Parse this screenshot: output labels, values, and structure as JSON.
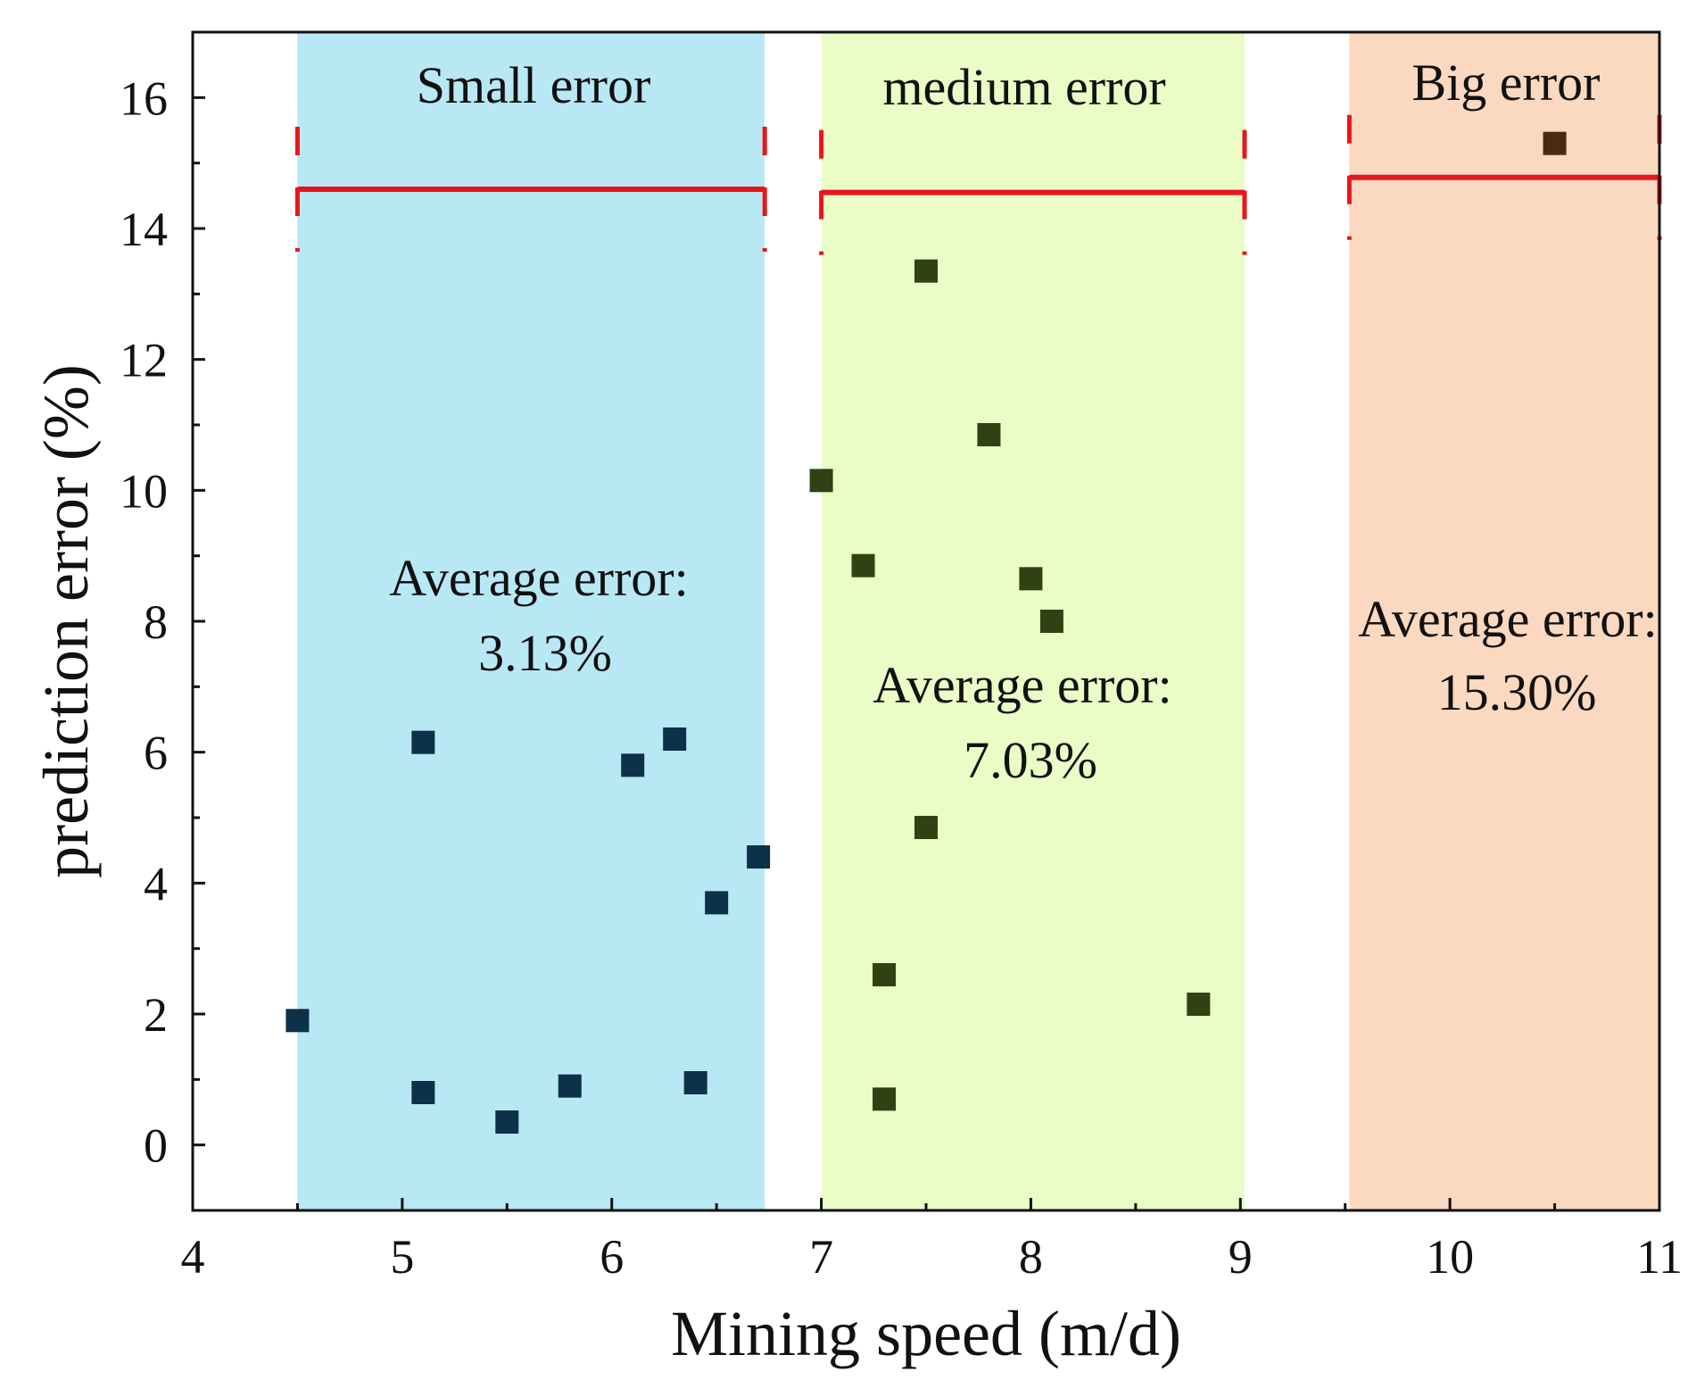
{
  "chart_data": {
    "type": "scatter",
    "title": "",
    "xlabel": "Mining speed (m/d)",
    "ylabel": "prediction error (%)",
    "xlim": [
      4,
      11
    ],
    "ylim": [
      -1,
      17
    ],
    "xticks": [
      4,
      5,
      6,
      7,
      8,
      9,
      10,
      11
    ],
    "yticks": [
      0,
      2,
      4,
      6,
      8,
      10,
      12,
      14,
      16
    ],
    "xtick_labels": [
      "4",
      "5",
      "6",
      "7",
      "8",
      "9",
      "10",
      "11"
    ],
    "ytick_labels": [
      "0",
      "2",
      "4",
      "6",
      "8",
      "10",
      "12",
      "14",
      "16"
    ],
    "grid": false,
    "regions": [
      {
        "name": "small",
        "label": "Small error",
        "x_range": [
          4.5,
          6.73
        ],
        "color": "#b9e8f5",
        "bracket_y": 14.6,
        "avg_line1": "Average error:",
        "avg_line2": "3.13%",
        "avg_value": 3.13,
        "marker_color": "#0d3148",
        "points": [
          {
            "x": 4.5,
            "y": 1.9
          },
          {
            "x": 5.1,
            "y": 6.15
          },
          {
            "x": 5.1,
            "y": 0.8
          },
          {
            "x": 5.5,
            "y": 0.35
          },
          {
            "x": 5.8,
            "y": 0.9
          },
          {
            "x": 6.1,
            "y": 5.8
          },
          {
            "x": 6.3,
            "y": 6.2
          },
          {
            "x": 6.4,
            "y": 0.95
          },
          {
            "x": 6.5,
            "y": 3.7
          },
          {
            "x": 6.7,
            "y": 4.4
          }
        ]
      },
      {
        "name": "medium",
        "label": "medium error",
        "x_range": [
          7.0,
          9.02
        ],
        "color": "#eafdc6",
        "bracket_y": 14.55,
        "avg_line1": "Average error:",
        "avg_line2": "7.03%",
        "avg_value": 7.03,
        "marker_color": "#2f4213",
        "points": [
          {
            "x": 7.0,
            "y": 10.15
          },
          {
            "x": 7.2,
            "y": 8.85
          },
          {
            "x": 7.3,
            "y": 2.6
          },
          {
            "x": 7.3,
            "y": 0.7
          },
          {
            "x": 7.5,
            "y": 13.35
          },
          {
            "x": 7.5,
            "y": 4.85
          },
          {
            "x": 7.8,
            "y": 10.85
          },
          {
            "x": 8.0,
            "y": 8.65
          },
          {
            "x": 8.1,
            "y": 8.0
          },
          {
            "x": 8.8,
            "y": 2.15
          }
        ]
      },
      {
        "name": "big",
        "label": "Big error",
        "x_range": [
          9.52,
          11.0
        ],
        "color": "#fbd9c0",
        "bracket_y": 14.78,
        "avg_line1": "Average error:",
        "avg_line2": "15.30%",
        "avg_value": 15.3,
        "marker_color": "#4a2a12",
        "points": [
          {
            "x": 10.5,
            "y": 15.3
          }
        ]
      }
    ]
  }
}
